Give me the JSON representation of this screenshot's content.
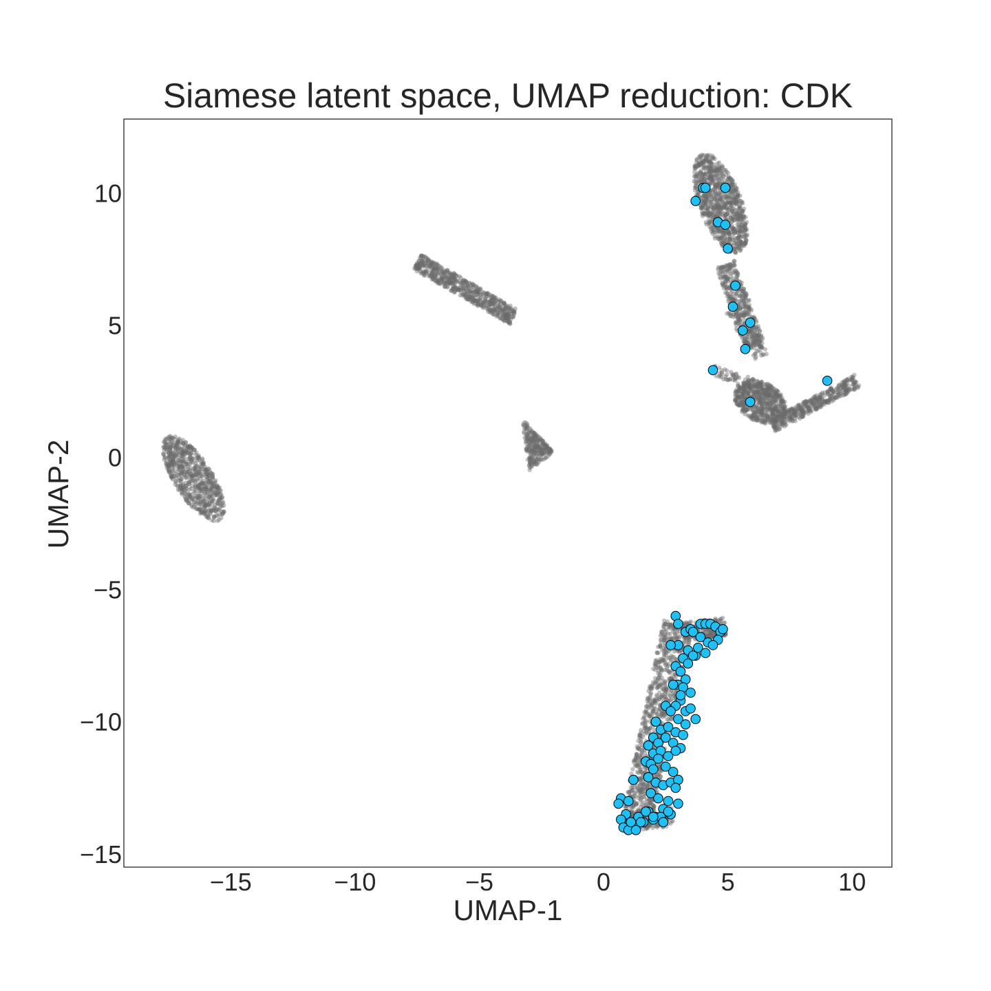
{
  "chart_data": {
    "type": "scatter",
    "title": "Siamese latent space, UMAP reduction: CDK",
    "xlabel": "UMAP-1",
    "ylabel": "UMAP-2",
    "xlim": [
      -19.3,
      11.6
    ],
    "ylim": [
      -15.5,
      12.8
    ],
    "grid": false,
    "legend": "none",
    "x_ticks": [
      -15,
      -10,
      -5,
      0,
      5,
      10
    ],
    "y_ticks": [
      -15,
      -10,
      -5,
      0,
      5,
      10
    ],
    "x_tick_labels": [
      "−15",
      "−10",
      "−5",
      "0",
      "5",
      "10"
    ],
    "y_tick_labels": [
      "−15",
      "−10",
      "−5",
      "0",
      "5",
      "10"
    ],
    "colors": {
      "background_points": "#6b6b6b",
      "highlight_fill": "#1ec0f5",
      "highlight_edge": "#000000",
      "text": "#262626",
      "frame": "#262626"
    },
    "series": [
      {
        "role": "background",
        "regions": [
          {
            "shape": "ellipse",
            "center": [
              -16.5,
              -0.8
            ],
            "half_lengths": [
              0.75,
              1.9
            ],
            "angle_deg": 35,
            "count": 700
          },
          {
            "shape": "strip",
            "from": [
              -7.5,
              7.4
            ],
            "to": [
              -3.6,
              5.3
            ],
            "half_width": 0.32,
            "count": 600
          },
          {
            "shape": "triangle",
            "vertices": [
              [
                -3.3,
                1.5
              ],
              [
                -2.0,
                0.2
              ],
              [
                -3.0,
                -0.5
              ]
            ],
            "count": 250
          },
          {
            "shape": "ellipse",
            "center": [
              4.7,
              9.6
            ],
            "half_lengths": [
              0.85,
              2.0
            ],
            "angle_deg": 22,
            "count": 900
          },
          {
            "shape": "strip",
            "from": [
              4.9,
              7.3
            ],
            "to": [
              6.1,
              4.2
            ],
            "half_width": 0.4,
            "count": 350
          },
          {
            "shape": "strip",
            "from": [
              5.2,
              5.6
            ],
            "to": [
              6.4,
              3.8
            ],
            "half_width": 0.3,
            "count": 120
          },
          {
            "shape": "strip",
            "from": [
              4.4,
              3.3
            ],
            "to": [
              6.0,
              2.8
            ],
            "half_width": 0.2,
            "count": 60
          },
          {
            "shape": "ellipse",
            "center": [
              6.3,
              2.1
            ],
            "half_lengths": [
              1.1,
              0.75
            ],
            "angle_deg": -25,
            "count": 600
          },
          {
            "shape": "strip",
            "from": [
              6.8,
              1.2
            ],
            "to": [
              10.2,
              2.9
            ],
            "half_width": 0.25,
            "count": 400
          },
          {
            "shape": "strip",
            "from": [
              3.2,
              -6.6
            ],
            "to": [
              4.9,
              -6.4
            ],
            "half_width": 0.35,
            "count": 250
          },
          {
            "shape": "strip",
            "from": [
              3.0,
              -6.3
            ],
            "to": [
              1.3,
              -13.8
            ],
            "half_width": 0.6,
            "count": 1000
          },
          {
            "shape": "strip",
            "from": [
              0.8,
              -13.8
            ],
            "to": [
              2.8,
              -13.6
            ],
            "half_width": 0.35,
            "count": 200
          }
        ]
      },
      {
        "role": "highlight",
        "x": [
          4.0,
          4.1,
          4.9,
          3.7,
          4.6,
          4.9,
          5.0,
          5.3,
          5.2,
          5.9,
          5.6,
          5.7,
          4.4,
          5.9,
          9.0,
          2.9,
          3.0,
          3.3,
          3.5,
          3.6,
          3.9,
          4.1,
          4.3,
          4.5,
          4.7,
          4.8,
          4.6,
          4.2,
          3.9,
          3.7,
          3.4,
          3.2,
          3.0,
          2.7,
          2.9,
          3.1,
          3.4,
          3.6,
          3.8,
          4.1,
          4.4,
          3.3,
          3.0,
          3.2,
          3.5,
          3.1,
          2.9,
          3.3,
          3.5,
          3.7,
          2.8,
          3.1,
          2.5,
          2.7,
          3.0,
          3.3,
          2.1,
          2.3,
          2.6,
          2.9,
          3.2,
          2.0,
          2.2,
          2.5,
          2.8,
          3.1,
          1.8,
          2.0,
          2.3,
          2.6,
          2.9,
          1.7,
          1.9,
          2.2,
          2.5,
          2.8,
          3.0,
          1.8,
          2.1,
          2.4,
          2.7,
          3.0,
          1.2,
          1.9,
          2.2,
          2.6,
          2.9,
          0.7,
          1.0,
          1.8,
          2.1,
          2.4,
          2.7,
          0.6,
          0.9,
          1.4,
          1.7,
          2.0,
          2.3,
          2.6,
          0.7,
          1.0,
          1.3,
          1.6,
          2.0,
          2.4,
          0.8,
          1.0,
          1.3,
          3.0,
          2.0,
          1.5,
          1.1
        ],
        "y": [
          10.2,
          10.2,
          10.2,
          9.7,
          8.9,
          8.8,
          7.9,
          6.5,
          5.7,
          5.1,
          4.8,
          4.1,
          3.3,
          2.1,
          2.9,
          -6.0,
          -6.3,
          -6.6,
          -6.5,
          -6.6,
          -6.3,
          -6.3,
          -6.3,
          -6.4,
          -6.6,
          -6.5,
          -6.9,
          -7.0,
          -6.8,
          -7.5,
          -7.3,
          -7.6,
          -7.1,
          -7.1,
          -7.9,
          -8.1,
          -7.8,
          -7.5,
          -7.2,
          -7.4,
          -7.1,
          -8.4,
          -8.6,
          -8.7,
          -8.9,
          -9.2,
          -9.4,
          -9.6,
          -9.5,
          -9.9,
          -8.6,
          -9.0,
          -9.4,
          -9.6,
          -9.9,
          -10.1,
          -10.0,
          -10.3,
          -10.2,
          -10.4,
          -10.5,
          -10.6,
          -10.8,
          -10.6,
          -10.8,
          -11.0,
          -10.9,
          -11.2,
          -11.1,
          -11.3,
          -11.1,
          -11.5,
          -11.6,
          -11.4,
          -11.7,
          -11.9,
          -12.2,
          -12.1,
          -12.3,
          -12.4,
          -12.3,
          -12.2,
          -12.2,
          -12.7,
          -12.9,
          -13.0,
          -12.5,
          -12.9,
          -13.0,
          -13.4,
          -13.6,
          -13.3,
          -13.5,
          -13.1,
          -13.5,
          -13.6,
          -13.4,
          -13.7,
          -13.6,
          -13.4,
          -13.7,
          -14.0,
          -13.9,
          -13.8,
          -13.6,
          -13.8,
          -14.0,
          -14.1,
          -14.1,
          -13.1,
          -11.8,
          -13.8,
          -13.8
        ]
      }
    ]
  }
}
